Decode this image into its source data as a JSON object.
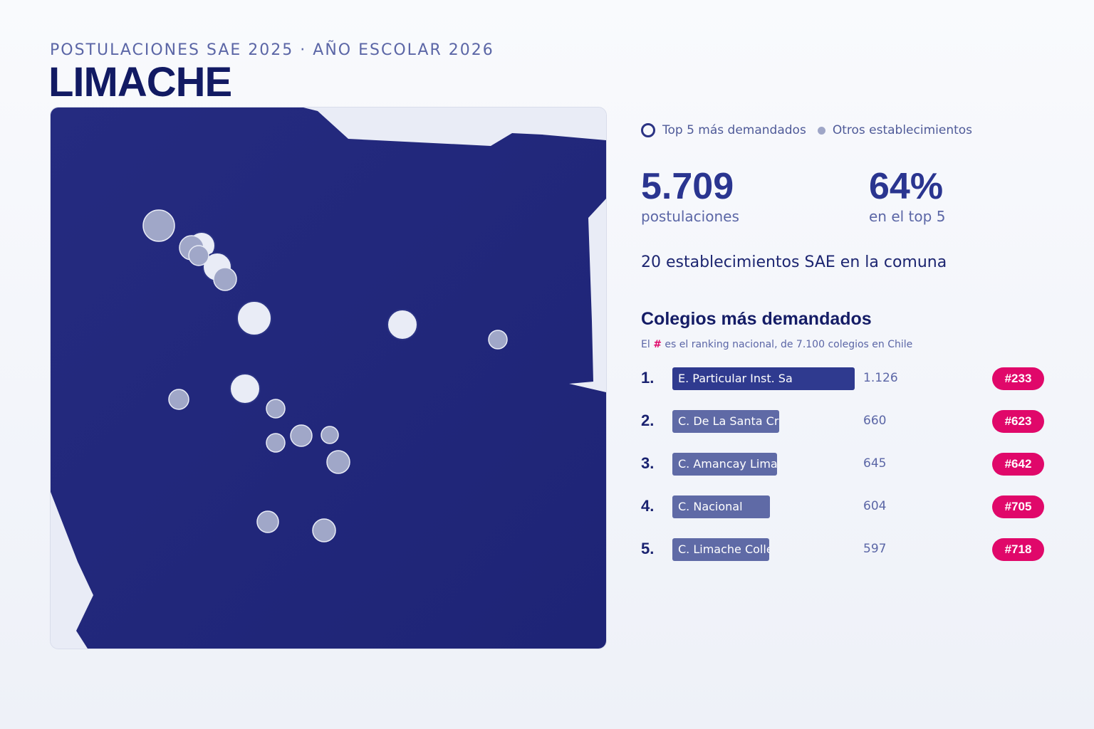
{
  "header": {
    "kicker": "POSTULACIONES SAE 2025 · AÑO ESCOLAR 2026",
    "title": "LIMACHE"
  },
  "legend": {
    "top5_label": "Top 5 más demandados",
    "others_label": "Otros establecimientos"
  },
  "stats": {
    "applications_value": "5.709",
    "applications_label": "postulaciones",
    "top5_share_value": "64%",
    "top5_share_label": "en el top 5",
    "schools_count_text": "20 establecimientos SAE en la comuna"
  },
  "ranking": {
    "title": "Colegios más demandados",
    "note_prefix": "El",
    "note_hash": "#",
    "note_suffix": "es el ranking nacional, de 7.100 colegios en Chile",
    "max_applications": 1126,
    "items": [
      {
        "position": "1.",
        "name": "E. Particular Inst. Sa",
        "applications": 1126,
        "applications_text": "1.126",
        "national_rank": "#233"
      },
      {
        "position": "2.",
        "name": "C. De La Santa Cruz",
        "applications": 660,
        "applications_text": "660",
        "national_rank": "#623"
      },
      {
        "position": "3.",
        "name": "C. Amancay Limache",
        "applications": 645,
        "applications_text": "645",
        "national_rank": "#642"
      },
      {
        "position": "4.",
        "name": "C. Nacional",
        "applications": 604,
        "applications_text": "604",
        "national_rank": "#705"
      },
      {
        "position": "5.",
        "name": "C. Limache College",
        "applications": 597,
        "applications_text": "597",
        "national_rank": "#718"
      }
    ]
  },
  "colors": {
    "commune_fill": "#232a7e",
    "top5_marker": "#e9ecf6",
    "other_marker": "#a0a7c8",
    "accent": "#2a3590",
    "badge": "#e0086a",
    "bar_top": "#2f3a8f",
    "bar_other": "#5f6aa6"
  }
}
